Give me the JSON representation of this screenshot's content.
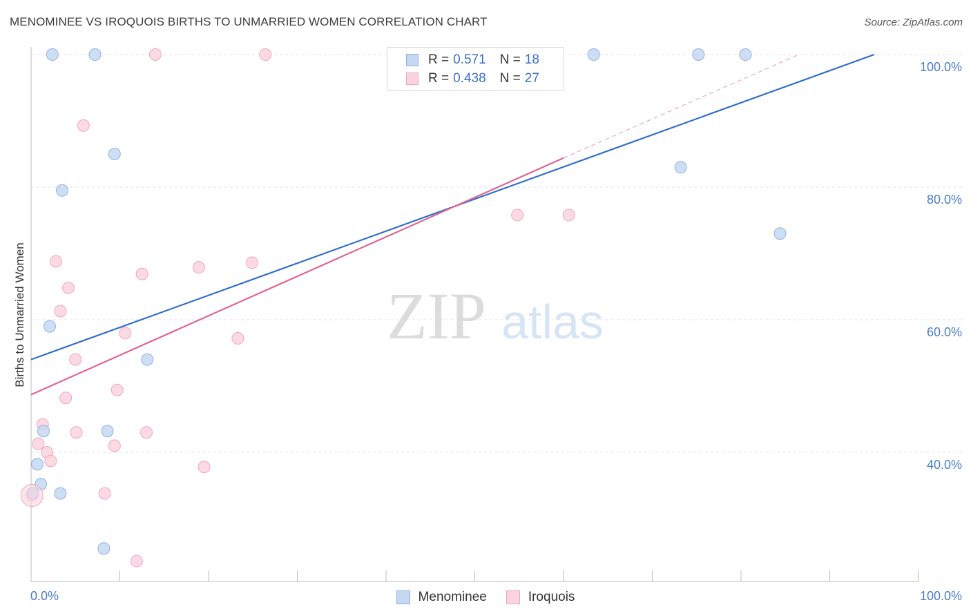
{
  "title": "MENOMINEE VS IROQUOIS BIRTHS TO UNMARRIED WOMEN CORRELATION CHART",
  "source": "Source: ZipAtlas.com",
  "watermark": {
    "zip": "ZIP",
    "atlas": "atlas"
  },
  "colors": {
    "menominee_fill": "#c5d8f3",
    "menominee_stroke": "#8fb2e2",
    "menominee_line": "#2f6fcc",
    "iroquois_fill": "#fbd3df",
    "iroquois_stroke": "#f0a5bd",
    "iroquois_line": "#e06690",
    "tick_label": "#4a7cc9"
  },
  "legend": {
    "r_label": "R =",
    "n_label": "N =",
    "rows": [
      {
        "series": "Menominee",
        "r": "0.571",
        "n": "18"
      },
      {
        "series": "Iroquois",
        "r": "0.438",
        "n": "27"
      }
    ]
  },
  "chart_data": {
    "type": "scatter",
    "title": "MENOMINEE VS IROQUOIS BIRTHS TO UNMARRIED WOMEN CORRELATION CHART",
    "xlabel": "",
    "ylabel": "Births to Unmarried Women",
    "xlim": [
      0,
      100
    ],
    "ylim": [
      21,
      104
    ],
    "x_tick_labels": [
      "0.0%",
      "100.0%"
    ],
    "y_ticks": [
      40,
      60,
      80,
      100
    ],
    "y_tick_labels": [
      "40.0%",
      "60.0%",
      "80.0%",
      "100.0%"
    ],
    "grid": true,
    "legend_position": "top-center",
    "series": [
      {
        "name": "Menominee",
        "points": [
          [
            2.4,
            100
          ],
          [
            7.2,
            100
          ],
          [
            63.4,
            100
          ],
          [
            75.2,
            100
          ],
          [
            80.5,
            100
          ],
          [
            9.4,
            85
          ],
          [
            73.2,
            83
          ],
          [
            3.5,
            79.5
          ],
          [
            84.4,
            73
          ],
          [
            2.1,
            59
          ],
          [
            13.1,
            54
          ],
          [
            1.4,
            43.2
          ],
          [
            8.6,
            43.2
          ],
          [
            0.7,
            38.2
          ],
          [
            1.1,
            35.2
          ],
          [
            0.2,
            33.8
          ],
          [
            3.3,
            33.8
          ],
          [
            8.2,
            25.5
          ]
        ],
        "trend": {
          "x1": 0,
          "y1": 54,
          "x2": 95,
          "y2": 100
        }
      },
      {
        "name": "Iroquois",
        "points": [
          [
            14,
            100
          ],
          [
            26.4,
            100
          ],
          [
            5.9,
            89.3
          ],
          [
            54.8,
            75.8
          ],
          [
            60.6,
            75.8
          ],
          [
            2.8,
            68.8
          ],
          [
            24.9,
            68.6
          ],
          [
            18.9,
            67.9
          ],
          [
            12.5,
            66.9
          ],
          [
            4.2,
            64.8
          ],
          [
            3.3,
            61.3
          ],
          [
            10.6,
            58
          ],
          [
            23.3,
            57.2
          ],
          [
            5,
            54
          ],
          [
            9.7,
            49.4
          ],
          [
            3.9,
            48.2
          ],
          [
            1.3,
            44.2
          ],
          [
            5.1,
            43
          ],
          [
            13,
            43
          ],
          [
            0.8,
            41.3
          ],
          [
            9.4,
            41
          ],
          [
            1.8,
            40
          ],
          [
            2.2,
            38.7
          ],
          [
            19.5,
            37.8
          ],
          [
            8.3,
            33.8
          ],
          [
            0.1,
            33.5
          ],
          [
            11.9,
            23.6
          ]
        ],
        "trend": {
          "x1": 0,
          "y1": 48.7,
          "x2": 60,
          "y2": 84.4
        },
        "trend_extension": {
          "x1": 60,
          "y1": 84.4,
          "x2": 86.5,
          "y2": 100
        }
      }
    ]
  }
}
